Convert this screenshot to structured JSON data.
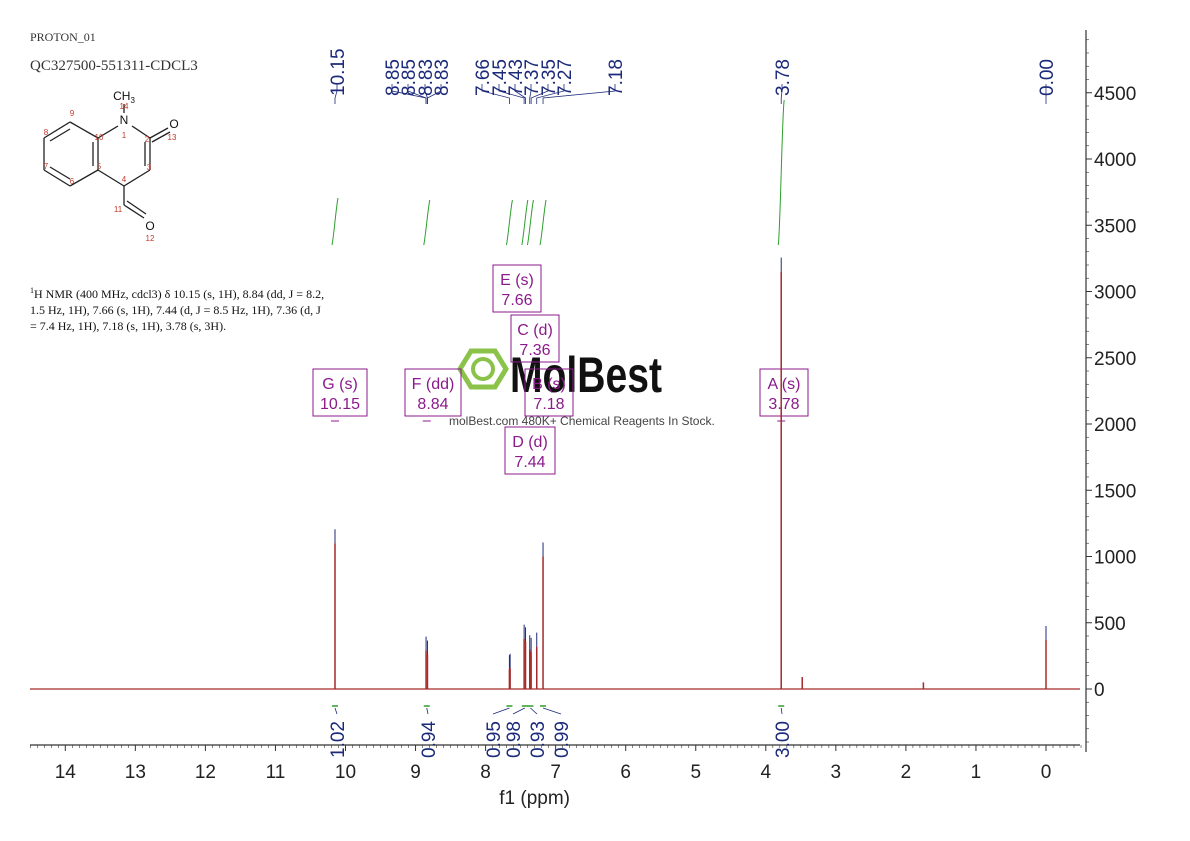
{
  "header": {
    "experiment": "PROTON_01",
    "sample": "QC327500-551311-CDCL3"
  },
  "description": {
    "prefix": "1",
    "text": "H NMR (400 MHz, cdcl3) δ 10.15 (s, 1H), 8.84 (dd, J = 8.2, 1.5 Hz, 1H), 7.66 (s, 1H), 7.44 (d, J = 8.5 Hz, 1H), 7.36 (d, J = 7.4 Hz, 1H), 7.18 (s, 1H), 3.78 (s, 3H)."
  },
  "molecule": {
    "atoms": [
      "CH3",
      "N",
      "O",
      "O"
    ],
    "numbers": [
      "14",
      "1",
      "2",
      "13",
      "3",
      "4",
      "10",
      "5",
      "9",
      "8",
      "7",
      "6",
      "11",
      "12"
    ]
  },
  "watermark": {
    "logo": "MolBest",
    "tagline": "molBest.com 480K+ Chemical Reagents In Stock."
  },
  "chart_data": {
    "type": "line",
    "xlabel": "f1 (ppm)",
    "x_reversed": true,
    "xlim": [
      14.5,
      -0.5
    ],
    "x_ticks": [
      14,
      13,
      12,
      11,
      10,
      9,
      8,
      7,
      6,
      5,
      4,
      3,
      2,
      1,
      0
    ],
    "ylim": [
      -500,
      4900
    ],
    "y_ticks": [
      0,
      500,
      1000,
      1500,
      2000,
      2500,
      3000,
      3500,
      4000,
      4500
    ],
    "spectrum_color": "#a52a2a",
    "integral_color": "#2e9e2e",
    "label_color": "#1c2a7a",
    "box_color": "#8b1a8b",
    "peaks": [
      {
        "ppm": 10.15,
        "height": 1100
      },
      {
        "ppm": 8.85,
        "height": 290
      },
      {
        "ppm": 8.83,
        "height": 260
      },
      {
        "ppm": 7.66,
        "height": 150
      },
      {
        "ppm": 7.65,
        "height": 160
      },
      {
        "ppm": 7.45,
        "height": 380
      },
      {
        "ppm": 7.43,
        "height": 360
      },
      {
        "ppm": 7.37,
        "height": 300
      },
      {
        "ppm": 7.35,
        "height": 280
      },
      {
        "ppm": 7.27,
        "height": 320
      },
      {
        "ppm": 7.18,
        "height": 1000
      },
      {
        "ppm": 3.78,
        "height": 3150
      },
      {
        "ppm": 3.48,
        "height": 90
      },
      {
        "ppm": 1.75,
        "height": 50
      },
      {
        "ppm": 0.0,
        "height": 370
      }
    ],
    "peak_labels": [
      "10.15",
      "8.85",
      "8.85",
      "8.83",
      "8.83",
      "7.66",
      "7.45",
      "7.43",
      "7.37",
      "7.35",
      "7.27",
      "7.18",
      "3.78",
      "0.00"
    ],
    "integrals": [
      {
        "ppm": 10.15,
        "value": "1.02"
      },
      {
        "ppm": 8.84,
        "value": "0.94"
      },
      {
        "ppm": 7.66,
        "value": "0.95"
      },
      {
        "ppm": 7.44,
        "value": "0.98"
      },
      {
        "ppm": 7.36,
        "value": "0.93"
      },
      {
        "ppm": 7.18,
        "value": "0.99"
      },
      {
        "ppm": 3.78,
        "value": "3.00"
      }
    ],
    "multiplets": [
      {
        "id": "G (s)",
        "shift": "10.15",
        "ppm": 10.15
      },
      {
        "id": "F (dd)",
        "shift": "8.84",
        "ppm": 8.84
      },
      {
        "id": "E (s)",
        "shift": "7.66",
        "ppm": 7.66
      },
      {
        "id": "C (d)",
        "shift": "7.36",
        "ppm": 7.36
      },
      {
        "id": "B (s)",
        "shift": "7.18",
        "ppm": 7.18
      },
      {
        "id": "D (d)",
        "shift": "7.44",
        "ppm": 7.44
      },
      {
        "id": "A (s)",
        "shift": "3.78",
        "ppm": 3.78
      }
    ]
  }
}
